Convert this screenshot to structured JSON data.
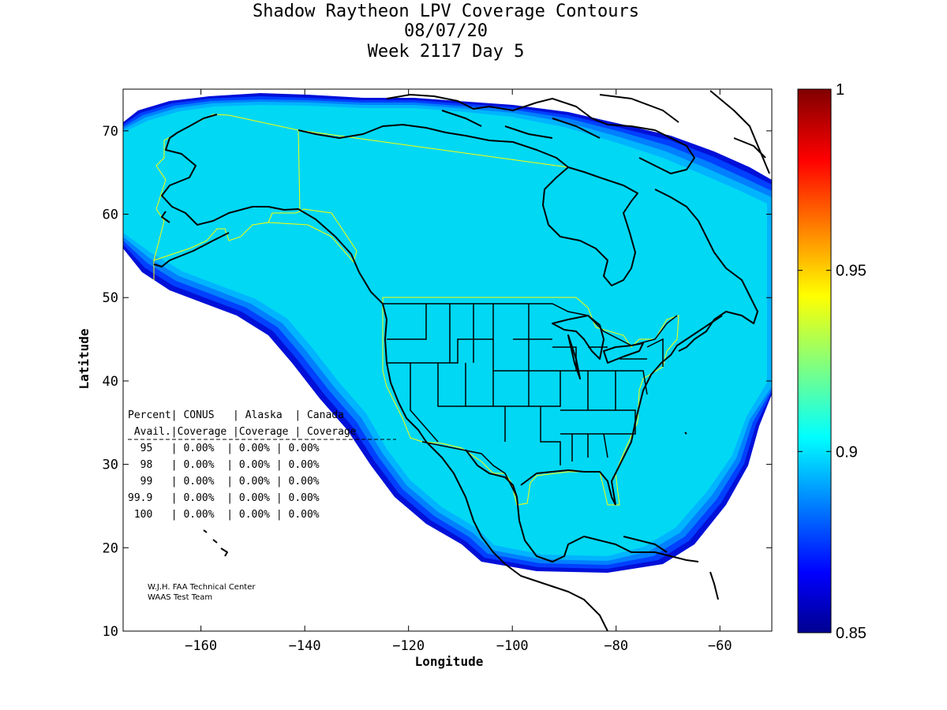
{
  "title_lines": [
    "Shadow Raytheon LPV Coverage Contours",
    "08/07/20",
    "Week 2117 Day 5"
  ],
  "axes": {
    "xlabel": "Longitude",
    "ylabel": "Latitude",
    "xlim": [
      -175,
      -50
    ],
    "ylim": [
      10,
      75
    ],
    "xticks": [
      -160,
      -140,
      -120,
      -100,
      -80,
      -60
    ],
    "yticks": [
      10,
      20,
      30,
      40,
      50,
      60,
      70
    ]
  },
  "colorbar": {
    "min": 0.85,
    "max": 1,
    "tick_labels": [
      "1",
      "0.95",
      "0.9",
      "0.85"
    ],
    "tick_values": [
      1,
      0.95,
      0.9,
      0.85
    ]
  },
  "table": {
    "header1": "Percent| CONUS   | Alaska  | Canada",
    "header2": " Avail.|Coverage |Coverage | Coverage",
    "rows": [
      "  95   | 0.00%  | 0.00% | 0.00%",
      "  98   | 0.00%  | 0.00% | 0.00%",
      "  99   | 0.00%  | 0.00% | 0.00%",
      "99.9   | 0.00%  | 0.00% | 0.00%",
      " 100   | 0.00%  | 0.00% | 0.00%"
    ]
  },
  "credit_lines": [
    "W.J.H. FAA Technical Center",
    "WAAS Test Team"
  ],
  "colors": {
    "coverage_main": "#00d8f4",
    "edge_band_1": "#00b4ff",
    "edge_band_2": "#0080ff",
    "edge_band_3": "#0040ff",
    "edge_band_4": "#0010d8",
    "service_volume": "#ffff00",
    "coastline": "#000000"
  },
  "chart_data": {
    "type": "heatmap",
    "title": "Shadow Raytheon LPV Coverage Contours",
    "xlabel": "Longitude",
    "ylabel": "Latitude",
    "xlim": [
      -175,
      -50
    ],
    "ylim": [
      10,
      75
    ],
    "colorbar_range": [
      0.85,
      1
    ],
    "dominant_value": 0.9,
    "table": [
      {
        "percent_avail": "95",
        "conus": "0.00%",
        "alaska": "0.00%",
        "canada": "0.00%"
      },
      {
        "percent_avail": "98",
        "conus": "0.00%",
        "alaska": "0.00%",
        "canada": "0.00%"
      },
      {
        "percent_avail": "99",
        "conus": "0.00%",
        "alaska": "0.00%",
        "canada": "0.00%"
      },
      {
        "percent_avail": "99.9",
        "conus": "0.00%",
        "alaska": "0.00%",
        "canada": "0.00%"
      },
      {
        "percent_avail": "100",
        "conus": "0.00%",
        "alaska": "0.00%",
        "canada": "0.00%"
      }
    ]
  }
}
